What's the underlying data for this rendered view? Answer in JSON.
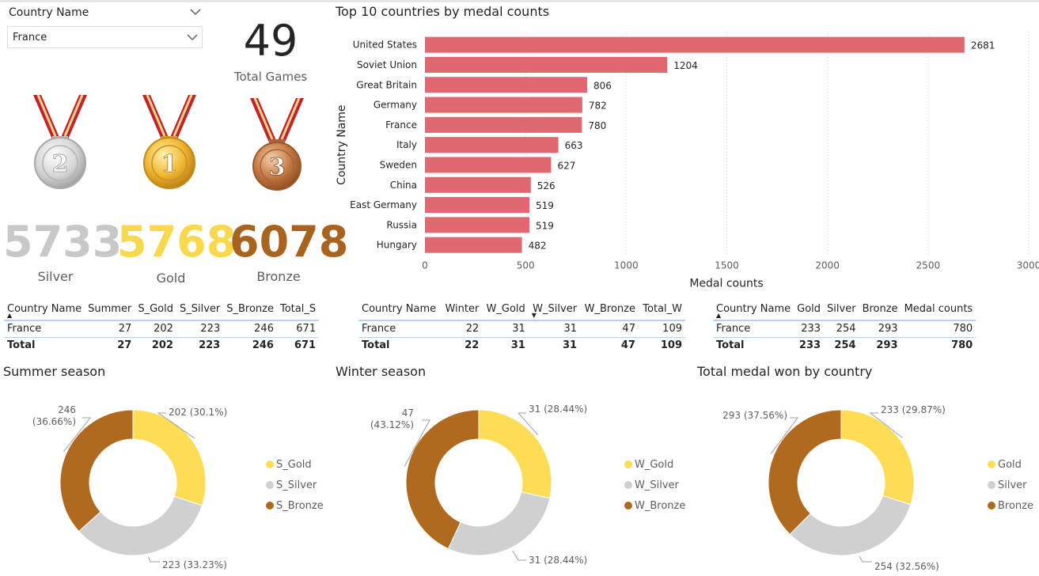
{
  "slicer": {
    "title": "Country Name",
    "selected": "France"
  },
  "kpi": {
    "total_games": "49",
    "total_games_label": "Total Games",
    "silver": "5733",
    "silver_label": "Silver",
    "gold": "5768",
    "gold_label": "Gold",
    "bronze": "6078",
    "bronze_label": "Bronze"
  },
  "medal_images": {
    "silver_number": "2",
    "gold_number": "1",
    "bronze_number": "3"
  },
  "colors": {
    "gold": "#fddd56",
    "silver": "#d0d0d0",
    "bronze": "#b06a1f",
    "bar": "#e06871",
    "silver_text": "#c8c8c8",
    "gold_text": "#f8d84c",
    "bronze_text": "#a8641f"
  },
  "chart_data": [
    {
      "type": "bar",
      "orientation": "horizontal",
      "title": "Top 10 countries by medal counts",
      "xlabel": "Medal counts",
      "ylabel": "Country Name",
      "categories": [
        "United States",
        "Soviet Union",
        "Great Britain",
        "Germany",
        "France",
        "Italy",
        "Sweden",
        "China",
        "East Germany",
        "Russia",
        "Hungary"
      ],
      "values": [
        2681,
        1204,
        806,
        782,
        780,
        663,
        627,
        526,
        519,
        519,
        482
      ],
      "xlim": [
        0,
        3000
      ],
      "xticks": [
        0,
        500,
        1000,
        1500,
        2000,
        2500,
        3000
      ],
      "grid": true
    },
    {
      "type": "pie",
      "donut": true,
      "title": "Summer season",
      "labels": [
        "S_Gold",
        "S_Silver",
        "S_Bronze"
      ],
      "values": [
        202,
        223,
        246
      ],
      "data_labels": [
        "202 (30.1%)",
        "223 (33.23%)",
        "246 (36.66%)"
      ],
      "legend": "right"
    },
    {
      "type": "pie",
      "donut": true,
      "title": "Winter season",
      "labels": [
        "W_Gold",
        "W_Silver",
        "W_Bronze"
      ],
      "values": [
        31,
        31,
        47
      ],
      "data_labels": [
        "31 (28.44%)",
        "31 (28.44%)",
        "47 (43.12%)"
      ],
      "legend": "right"
    },
    {
      "type": "pie",
      "donut": true,
      "title": "Total medal won by country",
      "labels": [
        "Gold",
        "Silver",
        "Bronze"
      ],
      "values": [
        233,
        254,
        293
      ],
      "data_labels": [
        "233 (29.87%)",
        "254 (32.56%)",
        "293 (37.56%)"
      ],
      "legend": "right"
    }
  ],
  "tables": {
    "summer": {
      "headers": [
        "Country Name",
        "Summer",
        "S_Gold",
        "S_Silver",
        "S_Bronze",
        "Total_S"
      ],
      "row": [
        "France",
        "27",
        "202",
        "223",
        "246",
        "671"
      ],
      "total": [
        "Total",
        "27",
        "202",
        "223",
        "246",
        "671"
      ]
    },
    "winter": {
      "headers": [
        "Country Name",
        "Winter",
        "W_Gold",
        "W_Silver",
        "W_Bronze",
        "Total_W"
      ],
      "row": [
        "France",
        "22",
        "31",
        "31",
        "47",
        "109"
      ],
      "total": [
        "Total",
        "22",
        "31",
        "31",
        "47",
        "109"
      ]
    },
    "total": {
      "headers": [
        "Country Name",
        "Gold",
        "Silver",
        "Bronze",
        "Medal counts"
      ],
      "row": [
        "France",
        "233",
        "254",
        "293",
        "780"
      ],
      "total": [
        "Total",
        "233",
        "254",
        "293",
        "780"
      ]
    }
  }
}
